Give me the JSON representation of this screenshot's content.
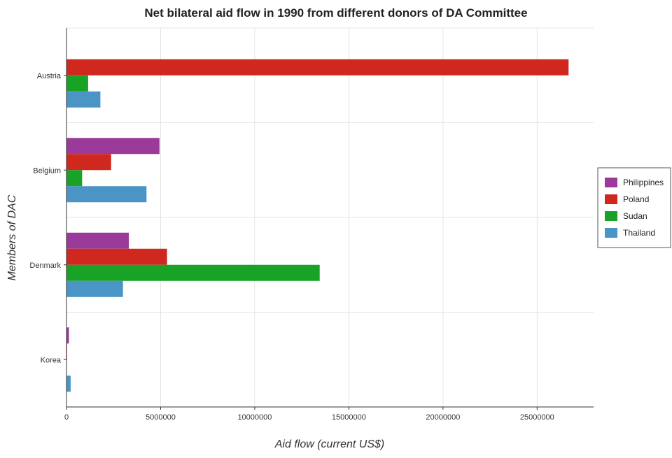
{
  "chart_data": {
    "type": "bar",
    "orientation": "horizontal",
    "title": "Net bilateral aid flow in 1990 from different donors of DA Committee",
    "xlabel": "Aid flow (current US$)",
    "ylabel": "Members of DAC",
    "categories": [
      "Austria",
      "Belgium",
      "Denmark",
      "Korea"
    ],
    "series": [
      {
        "name": "Philippines",
        "color": "#9b3a9b",
        "values": [
          0,
          4940000,
          3310000,
          130000
        ]
      },
      {
        "name": "Poland",
        "color": "#d0281e",
        "values": [
          26670000,
          2370000,
          5340000,
          30000
        ]
      },
      {
        "name": "Sudan",
        "color": "#18a327",
        "values": [
          1150000,
          830000,
          13450000,
          20000
        ]
      },
      {
        "name": "Thailand",
        "color": "#4a94c6",
        "values": [
          1800000,
          4250000,
          3000000,
          220000
        ]
      }
    ],
    "xlim": [
      0,
      28000000
    ],
    "xticks": [
      0,
      5000000,
      10000000,
      15000000,
      20000000,
      25000000
    ],
    "xtick_labels": [
      "0",
      "5000000",
      "10000000",
      "15000000",
      "20000000",
      "25000000"
    ],
    "grid": true,
    "legend_position": "right"
  }
}
